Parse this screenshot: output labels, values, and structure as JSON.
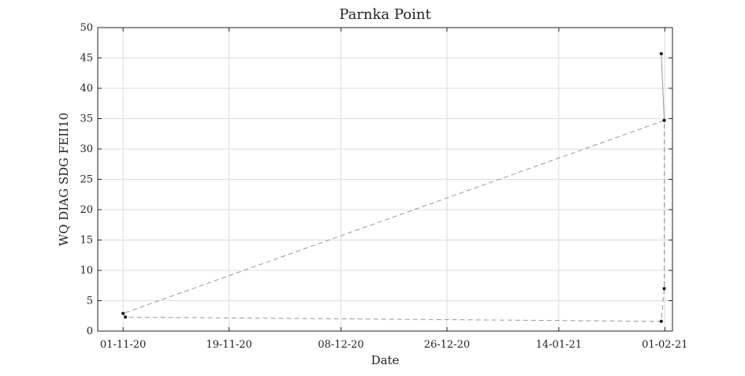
{
  "chart_data": {
    "type": "line",
    "title": "Parnka Point",
    "xlabel": "Date",
    "ylabel": "WQ DIAG SDG FEII10",
    "x_ticks": [
      "01-11-20",
      "19-11-20",
      "08-12-20",
      "26-12-20",
      "14-01-21",
      "01-02-21"
    ],
    "x_tick_days": [
      0,
      18,
      37,
      55,
      74,
      92
    ],
    "xlim_days": [
      -4.3,
      93.3
    ],
    "y_ticks": [
      0,
      5,
      10,
      15,
      20,
      25,
      30,
      35,
      40,
      45,
      50
    ],
    "ylim": [
      0,
      50
    ],
    "grid": true,
    "line_style": "dashed",
    "line_color": "#999999",
    "marker_color": "#111111",
    "series": [
      {
        "name": "",
        "points": [
          {
            "date": "01-11-20",
            "day": 0.0,
            "y": 2.9
          },
          {
            "date": "01-11-20",
            "day": 0.4,
            "y": 2.3
          },
          {
            "date": "31-01-21",
            "day": 91.4,
            "y": 1.6
          },
          {
            "date": "01-02-21",
            "day": 91.9,
            "y": 7.0
          },
          {
            "date": "01-02-21",
            "day": 91.9,
            "y": 34.7
          },
          {
            "date": "31-01-21",
            "day": 91.4,
            "y": 45.7
          },
          {
            "date": "01-02-21",
            "day": 91.9,
            "y": 34.7
          },
          {
            "date": "01-11-20",
            "day": 0.0,
            "y": 2.9
          }
        ]
      }
    ]
  }
}
